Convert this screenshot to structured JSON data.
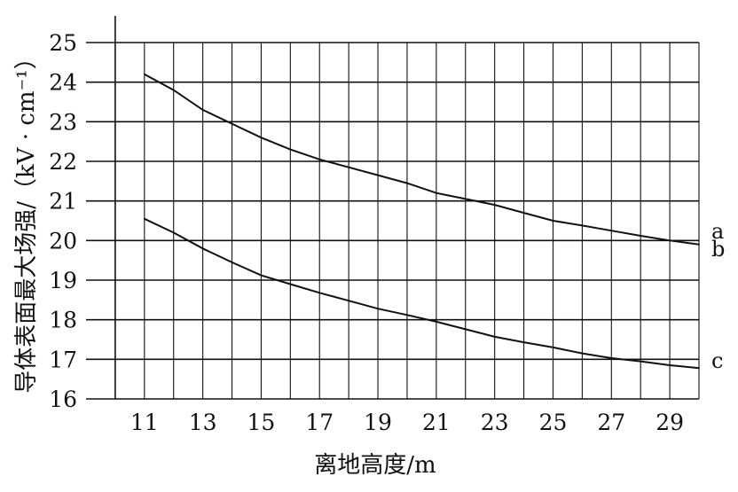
{
  "chart_data": {
    "type": "line",
    "xlabel": "离地高度/m",
    "ylabel": "导体表面最大场强/（kV · cm⁻¹）",
    "xlim": [
      9,
      30
    ],
    "ylim": [
      16,
      25
    ],
    "x_ticks": [
      11,
      13,
      15,
      17,
      19,
      21,
      23,
      25,
      27,
      29
    ],
    "y_ticks": [
      16,
      17,
      18,
      19,
      20,
      21,
      22,
      23,
      24,
      25
    ],
    "grid": {
      "horizontal_at": [
        17,
        18,
        19,
        20,
        21,
        22,
        23,
        24,
        25
      ],
      "vertical_every": 1,
      "vertical_from": 11,
      "vertical_to": 30
    },
    "x": [
      11,
      12,
      13,
      14,
      15,
      16,
      17,
      18,
      19,
      20,
      21,
      22,
      23,
      24,
      25,
      26,
      27,
      28,
      29,
      30
    ],
    "series": [
      {
        "values": [
          24.2,
          23.8,
          23.3,
          22.95,
          22.6,
          22.3,
          22.05,
          21.85,
          21.65,
          21.45,
          21.2,
          21.05,
          20.9,
          20.7,
          20.5,
          20.38,
          20.25,
          20.12,
          20.0,
          19.9
        ]
      },
      {
        "values": [
          20.55,
          20.2,
          19.8,
          19.45,
          19.12,
          18.9,
          18.68,
          18.48,
          18.28,
          18.12,
          17.95,
          17.76,
          17.57,
          17.43,
          17.3,
          17.15,
          17.03,
          16.95,
          16.85,
          16.78
        ]
      }
    ],
    "curve_labels": [
      {
        "text": "a",
        "y": 20.05
      },
      {
        "text": "b",
        "y": 19.6
      },
      {
        "text": "c",
        "y": 16.78
      }
    ]
  }
}
